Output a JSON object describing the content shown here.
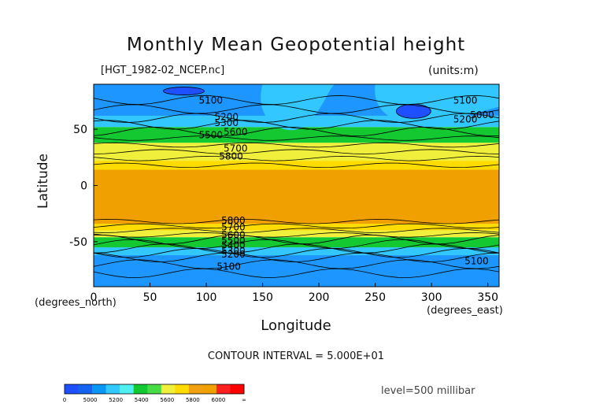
{
  "header": {
    "title": "Monthly Mean Geopotential height",
    "file_label": "[HGT_1982-02_NCEP.nc]",
    "units_label": "(units:m)"
  },
  "axes": {
    "ylabel": "Latitude",
    "xlabel": "Longitude",
    "x_unit_left": "(degrees_north)",
    "x_unit_right": "(degrees_east)"
  },
  "footer": {
    "contour_interval": "CONTOUR INTERVAL = 5.000E+01",
    "level": "level=500 millibar"
  },
  "chart_data": {
    "type": "heatmap",
    "title": "Monthly Mean Geopotential height",
    "xlabel": "Longitude",
    "ylabel": "Latitude",
    "xlim": [
      0,
      360
    ],
    "ylim": [
      -90,
      90
    ],
    "x_ticks": [
      0,
      50,
      100,
      150,
      200,
      250,
      300,
      350
    ],
    "y_ticks": [
      50,
      0,
      -50
    ],
    "contour_labels": [
      {
        "text": "5100",
        "lon": 104,
        "lat": 73
      },
      {
        "text": "5200",
        "lon": 118,
        "lat": 58
      },
      {
        "text": "5300",
        "lon": 118,
        "lat": 53
      },
      {
        "text": "5500",
        "lon": 104,
        "lat": 42
      },
      {
        "text": "5600",
        "lon": 126,
        "lat": 45
      },
      {
        "text": "5700",
        "lon": 126,
        "lat": 30
      },
      {
        "text": "5800",
        "lon": 122,
        "lat": 23
      },
      {
        "text": "5100",
        "lon": 330,
        "lat": 73
      },
      {
        "text": "5200",
        "lon": 330,
        "lat": 56
      },
      {
        "text": "5000",
        "lon": 345,
        "lat": 60
      },
      {
        "text": "5800",
        "lon": 124,
        "lat": -34
      },
      {
        "text": "5700",
        "lon": 124,
        "lat": -40
      },
      {
        "text": "5600",
        "lon": 124,
        "lat": -47
      },
      {
        "text": "5500",
        "lon": 124,
        "lat": -52
      },
      {
        "text": "5400",
        "lon": 124,
        "lat": -56
      },
      {
        "text": "5300",
        "lon": 124,
        "lat": -61
      },
      {
        "text": "5200",
        "lon": 124,
        "lat": -64
      },
      {
        "text": "5100",
        "lon": 120,
        "lat": -75
      },
      {
        "text": "5100",
        "lon": 340,
        "lat": -70
      }
    ],
    "colorbar": {
      "tick_labels": [
        "0",
        "5000",
        "5200",
        "5400",
        "5600",
        "5800",
        "6000",
        "∞"
      ],
      "colors": [
        "#1e50ff",
        "#1464f0",
        "#0a96f5",
        "#32c8ff",
        "#50f0f0",
        "#14c832",
        "#46dc46",
        "#f0f03c",
        "#ffdc00",
        "#f0a010",
        "#f0a000",
        "#ff2020",
        "#ff0000"
      ]
    },
    "band_colors": {
      "low": "#1e50ff",
      "5000": "#1e96ff",
      "5200": "#32c8ff",
      "5400": "#14c832",
      "5600": "#f0f03c",
      "5800": "#ffdc00",
      "tropics": "#f0a000"
    }
  }
}
